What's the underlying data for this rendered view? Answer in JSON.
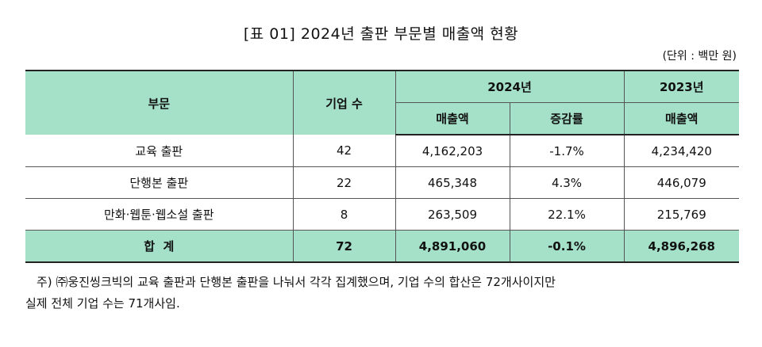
{
  "title": "[표 01] 2024년 출판 부문별 매출액 현황",
  "unit": "(단위 : 백만 원)",
  "header": {
    "category": "부문",
    "companies": "기업 수",
    "year2024": "2024년",
    "year2023": "2023년",
    "sales": "매출액",
    "growth": "증감률",
    "sales2023": "매출액"
  },
  "rows": [
    {
      "category": "교육 출판",
      "companies": "42",
      "sales2024": "4,162,203",
      "growth": "-1.7%",
      "sales2023": "4,234,420"
    },
    {
      "category": "단행본 출판",
      "companies": "22",
      "sales2024": "465,348",
      "growth": "4.3%",
      "sales2023": "446,079"
    },
    {
      "category": "만화·웹툰·웹소설 출판",
      "companies": "8",
      "sales2024": "263,509",
      "growth": "22.1%",
      "sales2023": "215,769"
    }
  ],
  "total": {
    "category": "합  계",
    "companies": "72",
    "sales2024": "4,891,060",
    "growth": "-0.1%",
    "sales2023": "4,896,268"
  },
  "note": {
    "line1": "주) ㈜웅진씽크빅의 교육 출판과 단행본 출판을 나눠서 각각 집계했으며, 기업 수의 합산은 72개사이지만",
    "line2": "실제 전체 기업 수는 71개사임."
  }
}
